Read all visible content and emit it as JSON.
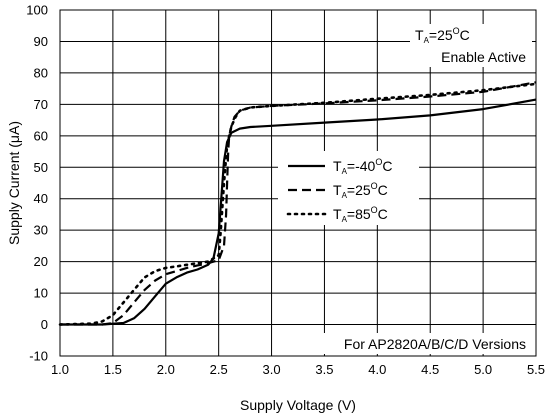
{
  "chart_data": {
    "type": "line",
    "xlabel": "Supply Voltage (V)",
    "ylabel": "Supply Current (μA)",
    "xlim": [
      1.0,
      5.5
    ],
    "ylim": [
      -10,
      100
    ],
    "x_ticks": [
      "1.0",
      "1.5",
      "2.0",
      "2.5",
      "3.0",
      "3.5",
      "4.0",
      "4.5",
      "5.0",
      "5.5"
    ],
    "y_ticks": [
      "-10",
      "0",
      "10",
      "20",
      "30",
      "40",
      "50",
      "60",
      "70",
      "80",
      "90",
      "100"
    ],
    "grid": true,
    "legend_position": "center-right",
    "annotations": {
      "top_right_line1": {
        "pre": "T",
        "sub": "A",
        "mid": "=25",
        "sup": "O",
        "post": "C"
      },
      "top_right_line2": "Enable Active",
      "bottom_right": "For AP2820A/B/C/D Versions"
    },
    "series": [
      {
        "legend": {
          "pre": "T",
          "sub": "A",
          "mid": "=-40",
          "sup": "O",
          "post": "C"
        },
        "style": "solid",
        "x": [
          1.0,
          1.4,
          1.6,
          1.7,
          1.8,
          1.9,
          2.0,
          2.1,
          2.2,
          2.3,
          2.4,
          2.45,
          2.5,
          2.52,
          2.55,
          2.58,
          2.62,
          2.7,
          2.8,
          3.0,
          3.5,
          4.0,
          4.5,
          5.0,
          5.5
        ],
        "y": [
          0,
          0,
          0.5,
          2,
          5,
          9,
          13,
          15,
          16.5,
          17.5,
          19,
          21,
          29,
          38,
          52,
          58,
          61,
          62.3,
          62.8,
          63.2,
          64.2,
          65.2,
          66.5,
          68.5,
          71.5
        ]
      },
      {
        "legend": {
          "pre": "T",
          "sub": "A",
          "mid": "=25",
          "sup": "O",
          "post": "C"
        },
        "style": "dashed",
        "x": [
          1.0,
          1.4,
          1.5,
          1.6,
          1.7,
          1.8,
          1.9,
          2.0,
          2.1,
          2.2,
          2.3,
          2.4,
          2.5,
          2.55,
          2.57,
          2.58,
          2.59,
          2.6,
          2.62,
          2.65,
          2.7,
          2.8,
          3.0,
          3.5,
          4.0,
          4.5,
          5.0,
          5.5
        ],
        "y": [
          0,
          0,
          0.5,
          3,
          7,
          11,
          14,
          16,
          17,
          18,
          18.8,
          19.5,
          20.5,
          25,
          35,
          45,
          55,
          60,
          63,
          66,
          68,
          69,
          69.5,
          70.3,
          71.3,
          72.5,
          74,
          77
        ]
      },
      {
        "legend": {
          "pre": "T",
          "sub": "A",
          "mid": "=85",
          "sup": "O",
          "post": "C"
        },
        "style": "dotted",
        "x": [
          1.0,
          1.3,
          1.4,
          1.5,
          1.6,
          1.7,
          1.8,
          1.9,
          2.0,
          2.1,
          2.2,
          2.3,
          2.4,
          2.5,
          2.52,
          2.55,
          2.58,
          2.62,
          2.66,
          2.7,
          2.8,
          3.0,
          3.5,
          4.0,
          4.5,
          5.0,
          5.5
        ],
        "y": [
          0,
          0.3,
          1,
          3,
          7,
          11,
          15,
          17,
          18,
          18.5,
          19,
          19.5,
          20,
          22,
          30,
          45,
          57,
          63,
          66,
          68,
          69,
          69.5,
          70.5,
          71.8,
          73,
          74.5,
          76.5
        ]
      }
    ]
  }
}
